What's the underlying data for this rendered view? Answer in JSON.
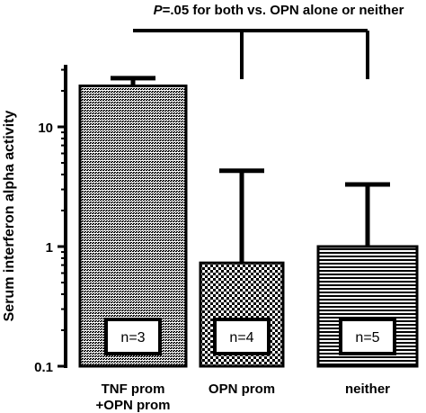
{
  "chart_data": {
    "type": "bar",
    "scale": "log",
    "ylabel": "Serum interferon alpha activity",
    "ylim": [
      0.1,
      60
    ],
    "yticks": [
      0.1,
      1,
      10
    ],
    "ytick_labels": [
      "0.1",
      "1",
      "10"
    ],
    "categories": [
      {
        "line1": "TNF prom",
        "line2": "+OPN prom"
      },
      {
        "line1": "OPN prom",
        "line2": ""
      },
      {
        "line1": "neither",
        "line2": ""
      }
    ],
    "values": [
      22,
      0.73,
      1.0
    ],
    "error_upper": [
      25.5,
      4.3,
      3.3
    ],
    "n_labels": [
      "n=3",
      "n=4",
      "n=5"
    ],
    "patterns": [
      "crosshatch",
      "checker",
      "horizontal-lines"
    ],
    "annotation": {
      "p_prefix": "P",
      "text": "=.05 for both vs. OPN alone or neither"
    },
    "grid": false,
    "legend": "none"
  }
}
